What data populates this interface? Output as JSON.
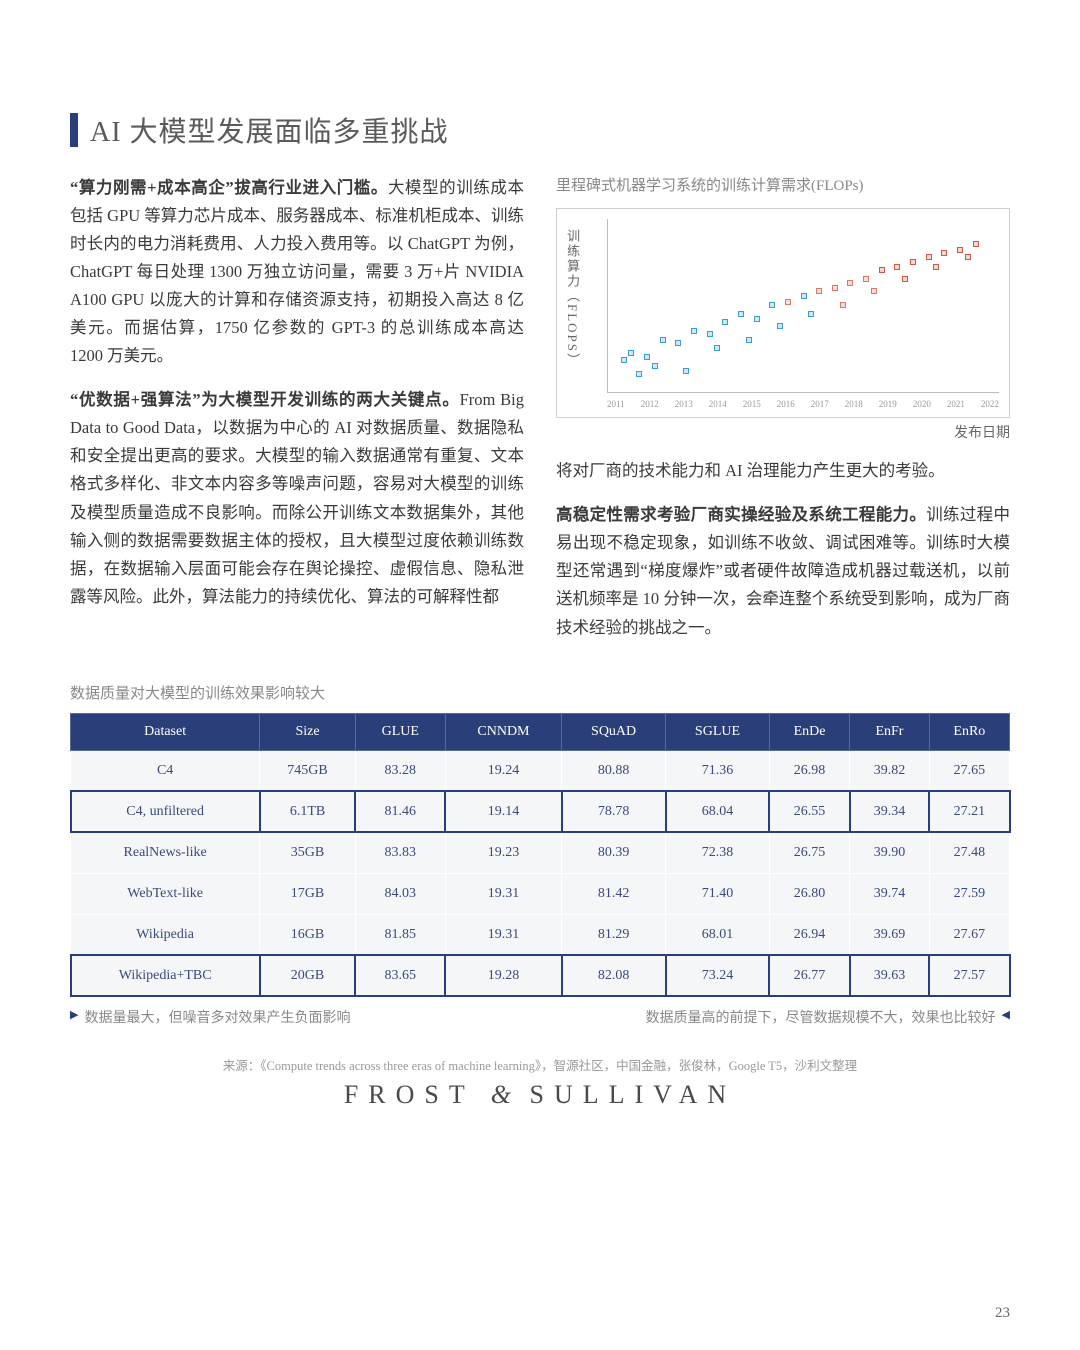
{
  "page": {
    "title": "AI 大模型发展面临多重挑战",
    "number": "23",
    "accent_color": "#2a3f7a",
    "title_color": "#5a5a5a"
  },
  "para1_bold": "“算力刚需+成本高企”拔高行业进入门槛。",
  "para1_body": "大模型的训练成本包括 GPU 等算力芯片成本、服务器成本、标准机柜成本、训练时长内的电力消耗费用、人力投入费用等。以 ChatGPT 为例，ChatGPT 每日处理 1300 万独立访问量，需要 3 万+片 NVIDIA A100 GPU 以庞大的计算和存储资源支持，初期投入高达 8 亿美元。而据估算，1750 亿参数的 GPT-3 的总训练成本高达 1200 万美元。",
  "para2_bold": "“优数据+强算法”为大模型开发训练的两大关键点。",
  "para2_body": "From Big Data to Good Data，以数据为中心的 AI 对数据质量、数据隐私和安全提出更高的要求。大模型的输入数据通常有重复、文本格式多样化、非文本内容多等噪声问题，容易对大模型的训练及模型质量造成不良影响。而除公开训练文本数据集外，其他输入侧的数据需要数据主体的授权，且大模型过度依赖训练数据，在数据输入层面可能会存在舆论操控、虚假信息、隐私泄露等风险。此外，算法能力的持续优化、算法的可解释性都",
  "para3_body": "将对厂商的技术能力和 AI 治理能力产生更大的考验。",
  "para4_bold": "高稳定性需求考验厂商实操经验及系统工程能力。",
  "para4_body": "训练过程中易出现不稳定现象，如训练不收敛、调试困难等。训练时大模型还常遇到“梯度爆炸”或者硬件故障造成机器过载送机，以前送机频率是 10 分钟一次，会牵连整个系统受到影响，成为厂商技术经验的挑战之一。",
  "chart": {
    "caption": "里程碑式机器学习系统的训练计算需求(FLOPs)",
    "ylabel": "训练算力（FLOPS）",
    "xlabel": "发布日期",
    "type": "scatter",
    "background_color": "#ffffff",
    "grid_color": "#e8e8e8",
    "xticks": [
      "2011",
      "2012",
      "2013",
      "2014",
      "2015",
      "2016",
      "2017",
      "2018",
      "2019",
      "2020",
      "2021",
      "2022"
    ],
    "points": [
      {
        "x": 4,
        "y": 18,
        "c": "#3aa0c8"
      },
      {
        "x": 6,
        "y": 22,
        "c": "#3aa0c8"
      },
      {
        "x": 10,
        "y": 20,
        "c": "#3aa0c8"
      },
      {
        "x": 14,
        "y": 30,
        "c": "#3aa0c8"
      },
      {
        "x": 18,
        "y": 28,
        "c": "#3aa0c8"
      },
      {
        "x": 22,
        "y": 35,
        "c": "#3aa0c8"
      },
      {
        "x": 26,
        "y": 33,
        "c": "#3aa0c8"
      },
      {
        "x": 30,
        "y": 40,
        "c": "#3aa0c8"
      },
      {
        "x": 34,
        "y": 45,
        "c": "#3aa0c8"
      },
      {
        "x": 38,
        "y": 42,
        "c": "#3aa0c8"
      },
      {
        "x": 42,
        "y": 50,
        "c": "#3aa0c8"
      },
      {
        "x": 46,
        "y": 52,
        "c": "#d47a6a"
      },
      {
        "x": 50,
        "y": 55,
        "c": "#3aa0c8"
      },
      {
        "x": 54,
        "y": 58,
        "c": "#d47a6a"
      },
      {
        "x": 58,
        "y": 60,
        "c": "#d47a6a"
      },
      {
        "x": 62,
        "y": 63,
        "c": "#d47a6a"
      },
      {
        "x": 66,
        "y": 65,
        "c": "#d47a6a"
      },
      {
        "x": 70,
        "y": 70,
        "c": "#c85a4a"
      },
      {
        "x": 74,
        "y": 72,
        "c": "#c85a4a"
      },
      {
        "x": 78,
        "y": 75,
        "c": "#c85a4a"
      },
      {
        "x": 82,
        "y": 78,
        "c": "#c85a4a"
      },
      {
        "x": 86,
        "y": 80,
        "c": "#c85a4a"
      },
      {
        "x": 90,
        "y": 82,
        "c": "#c85a4a"
      },
      {
        "x": 94,
        "y": 85,
        "c": "#c85a4a"
      },
      {
        "x": 8,
        "y": 10,
        "c": "#3aa0c8"
      },
      {
        "x": 12,
        "y": 15,
        "c": "#3aa0c8"
      },
      {
        "x": 20,
        "y": 12,
        "c": "#3aa0c8"
      },
      {
        "x": 28,
        "y": 25,
        "c": "#3aa0c8"
      },
      {
        "x": 36,
        "y": 30,
        "c": "#3aa0c8"
      },
      {
        "x": 44,
        "y": 38,
        "c": "#3aa0c8"
      },
      {
        "x": 52,
        "y": 45,
        "c": "#3aa0c8"
      },
      {
        "x": 60,
        "y": 50,
        "c": "#d47a6a"
      },
      {
        "x": 68,
        "y": 58,
        "c": "#d47a6a"
      },
      {
        "x": 76,
        "y": 65,
        "c": "#c85a4a"
      },
      {
        "x": 84,
        "y": 72,
        "c": "#c85a4a"
      },
      {
        "x": 92,
        "y": 78,
        "c": "#c85a4a"
      }
    ]
  },
  "table": {
    "caption": "数据质量对大模型的训练效果影响较大",
    "header_bg": "#2a3f7a",
    "header_fg": "#ffffff",
    "cell_bg": "#f5f6f8",
    "cell_fg": "#3a4a7a",
    "columns": [
      "Dataset",
      "Size",
      "GLUE",
      "CNNDM",
      "SQuAD",
      "SGLUE",
      "EnDe",
      "EnFr",
      "EnRo"
    ],
    "rows": [
      {
        "hl": false,
        "cells": [
          "C4",
          "745GB",
          "83.28",
          "19.24",
          "80.88",
          "71.36",
          "26.98",
          "39.82",
          "27.65"
        ]
      },
      {
        "hl": true,
        "cells": [
          "C4, unfiltered",
          "6.1TB",
          "81.46",
          "19.14",
          "78.78",
          "68.04",
          "26.55",
          "39.34",
          "27.21"
        ]
      },
      {
        "hl": false,
        "cells": [
          "RealNews-like",
          "35GB",
          "83.83",
          "19.23",
          "80.39",
          "72.38",
          "26.75",
          "39.90",
          "27.48"
        ]
      },
      {
        "hl": false,
        "cells": [
          "WebText-like",
          "17GB",
          "84.03",
          "19.31",
          "81.42",
          "71.40",
          "26.80",
          "39.74",
          "27.59"
        ]
      },
      {
        "hl": false,
        "cells": [
          "Wikipedia",
          "16GB",
          "81.85",
          "19.31",
          "81.29",
          "68.01",
          "26.94",
          "39.69",
          "27.67"
        ]
      },
      {
        "hl": true,
        "cells": [
          "Wikipedia+TBC",
          "20GB",
          "83.65",
          "19.28",
          "82.08",
          "73.24",
          "26.77",
          "39.63",
          "27.57"
        ]
      }
    ]
  },
  "annot_left": "数据量最大，但噪音多对效果产生负面影响",
  "annot_right": "数据质量高的前提下，尽管数据规模不大，效果也比较好",
  "source": "来源：《Compute trends across three eras of machine learning》，智源社区，中国金融，张俊林，Google T5，沙利文整理",
  "brand_left": "FROST",
  "brand_amp": "&",
  "brand_right": "SULLIVAN"
}
